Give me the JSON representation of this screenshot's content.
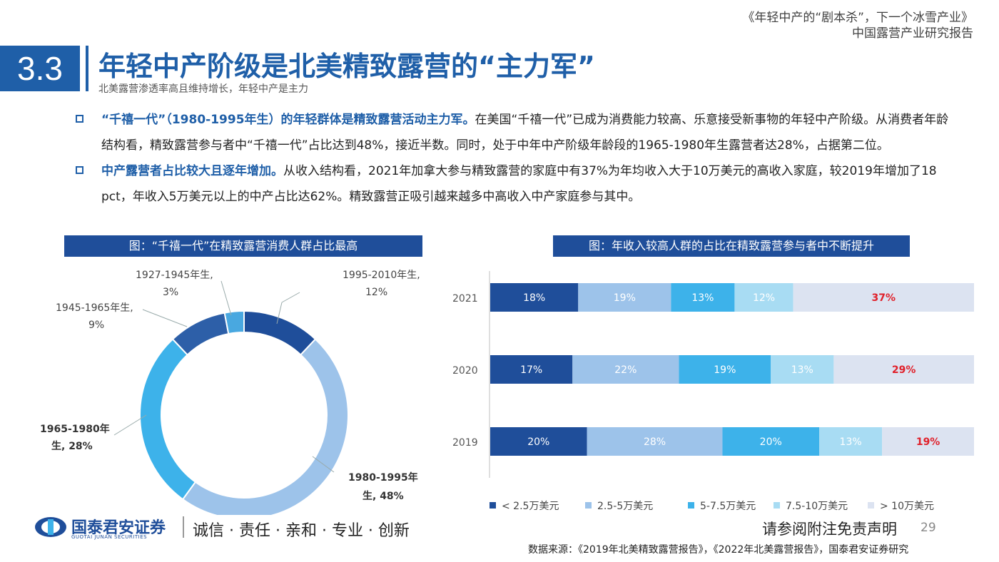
{
  "header": {
    "report_line1": "《年轻中产的“剧本杀”，下一个冰雪产业》",
    "report_line2": "中国露营产业研究报告"
  },
  "section": {
    "number": "3.3",
    "title": "年轻中产阶级是北美精致露营的“主力军”",
    "subtitle": "北美露营渗透率高且维持增长，年轻中产是主力"
  },
  "bullets": [
    {
      "highlight": "“千禧一代”（1980-1995年生）的年轻群体是精致露营活动主力军。",
      "text": "在美国“千禧一代”已成为消费能力较高、乐意接受新事物的年轻中产阶级。从消费者年龄结构看，精致露营参与者中“千禧一代”占比达到48%，接近半数。同时，处于中年中产阶级年龄段的1965-1980年生露营者达28%，占据第二位。"
    },
    {
      "highlight": "中产露营者占比较大且逐年增加。",
      "text": "从收入结构看，2021年加拿大参与精致露营的家庭中有37%为年均收入大于10万美元的高收入家庭，较2019年增加了18 pct，年收入5万美元以上的中产占比达62%。精致露营正吸引越来越多中高收入中产家庭参与其中。"
    }
  ],
  "chart_left": {
    "title": "图：“千禧一代”在精致露营消费人群占比最高"
  },
  "chart_right": {
    "title": "图：年收入较高人群的占比在精致露营参与者中不断提升"
  },
  "chart_data": [
    {
      "type": "pie",
      "donut": true,
      "slices": [
        {
          "label": "1995-2010年生,",
          "pct_label": "12%",
          "value": 12,
          "color": "#1f4e9a"
        },
        {
          "label": "1980-1995年",
          "label2": "生, 48%",
          "value": 48,
          "color": "#9dc3ea"
        },
        {
          "label": "1965-1980年",
          "label2": "生, 28%",
          "value": 28,
          "color": "#3db2ea"
        },
        {
          "label": "1945-1965年生,",
          "pct_label": "9%",
          "value": 9,
          "color": "#2d5fa8"
        },
        {
          "label": "1927-1945年生,",
          "pct_label": "3%",
          "value": 3,
          "color": "#49a8e0"
        }
      ]
    },
    {
      "type": "bar",
      "orientation": "horizontal",
      "stacked": true,
      "normalized": true,
      "categories": [
        "2021",
        "2020",
        "2019"
      ],
      "series": [
        {
          "name": "< 2.5万美元",
          "values": [
            18,
            17,
            20
          ],
          "labels": [
            "18%",
            "17%",
            "20%"
          ],
          "color": "#1f4e9a",
          "text_color": "#ffffff"
        },
        {
          "name": "2.5-5万美元",
          "values": [
            19,
            22,
            28
          ],
          "labels": [
            "19%",
            "22%",
            "28%"
          ],
          "color": "#9dc3ea",
          "text_color": "#ffffff"
        },
        {
          "name": "5-7.5万美元",
          "values": [
            13,
            19,
            20
          ],
          "labels": [
            "13%",
            "19%",
            "20%"
          ],
          "color": "#3db2ea",
          "text_color": "#ffffff"
        },
        {
          "name": "7.5-10万美元",
          "values": [
            12,
            13,
            13
          ],
          "labels": [
            "12%",
            "13%",
            "13%"
          ],
          "color": "#a8dcf3",
          "text_color": "#ffffff"
        },
        {
          "name": "> 10万美元",
          "values": [
            37,
            29,
            19
          ],
          "labels": [
            "37%",
            "29%",
            "19%"
          ],
          "color": "#dce3f1",
          "text_color": "#e0202a"
        }
      ]
    }
  ],
  "footer": {
    "logo_cn": "国泰君安证券",
    "logo_en": "GUOTAI JUNAN SECURITIES",
    "slogan": "诚信 · 责任 · 亲和 · 专业 · 创新",
    "disclaimer": "请参阅附注免责声明",
    "page": "29",
    "source": "数据来源：《2019年北美精致露营报告》，《2022年北美露营报告》，国泰君安证券研究"
  }
}
